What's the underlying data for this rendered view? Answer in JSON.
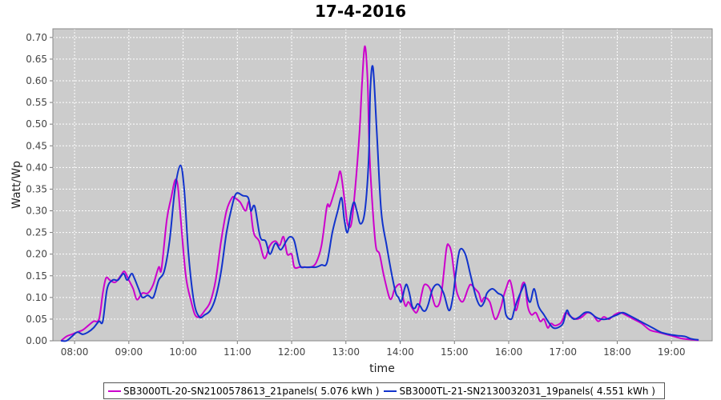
{
  "chart_data": {
    "type": "line",
    "title": "17-4-2016",
    "xlabel": "time",
    "ylabel": "Watt/Wp",
    "xlim": [
      7.6,
      19.75
    ],
    "ylim": [
      0,
      0.72
    ],
    "x_ticks": [
      "08:00",
      "09:00",
      "10:00",
      "11:00",
      "12:00",
      "13:00",
      "14:00",
      "15:00",
      "16:00",
      "17:00",
      "18:00",
      "19:00"
    ],
    "y_ticks": [
      "0.00",
      "0.05",
      "0.10",
      "0.15",
      "0.20",
      "0.25",
      "0.30",
      "0.35",
      "0.40",
      "0.45",
      "0.50",
      "0.55",
      "0.60",
      "0.65",
      "0.70"
    ],
    "grid": true,
    "background": "#cccccc",
    "legend_position": "bottom",
    "series": [
      {
        "name": "SB3000TL-20-SN2100578613_21panels( 5.076 kWh )",
        "color": "#cc00cc",
        "x": [
          7.75,
          7.85,
          7.95,
          8.05,
          8.15,
          8.25,
          8.35,
          8.45,
          8.52,
          8.58,
          8.65,
          8.75,
          8.85,
          8.92,
          9.0,
          9.08,
          9.15,
          9.25,
          9.35,
          9.45,
          9.55,
          9.6,
          9.7,
          9.78,
          9.85,
          9.9,
          9.95,
          10.05,
          10.15,
          10.22,
          10.3,
          10.4,
          10.5,
          10.6,
          10.7,
          10.8,
          10.9,
          10.95,
          11.05,
          11.15,
          11.22,
          11.3,
          11.4,
          11.5,
          11.6,
          11.7,
          11.78,
          11.85,
          11.92,
          12.0,
          12.05,
          12.15,
          12.25,
          12.35,
          12.45,
          12.55,
          12.65,
          12.7,
          12.78,
          12.85,
          12.9,
          12.97,
          13.03,
          13.1,
          13.17,
          13.25,
          13.3,
          13.35,
          13.4,
          13.43,
          13.48,
          13.55,
          13.62,
          13.7,
          13.8,
          13.85,
          13.9,
          14.0,
          14.05,
          14.1,
          14.15,
          14.2,
          14.25,
          14.3,
          14.35,
          14.4,
          14.45,
          14.55,
          14.65,
          14.75,
          14.85,
          14.9,
          14.95,
          15.0,
          15.05,
          15.15,
          15.25,
          15.3,
          15.38,
          15.45,
          15.5,
          15.55,
          15.65,
          15.75,
          15.85,
          15.9,
          15.95,
          16.02,
          16.08,
          16.13,
          16.2,
          16.25,
          16.3,
          16.35,
          16.42,
          16.5,
          16.58,
          16.65,
          16.72,
          16.78,
          16.85,
          16.95,
          17.0,
          17.05,
          17.15,
          17.25,
          17.35,
          17.45,
          17.55,
          17.65,
          17.75,
          17.85,
          17.95,
          18.05,
          18.15,
          18.3,
          18.45,
          18.6,
          18.75,
          18.9,
          19.05,
          19.2,
          19.35,
          19.5
        ],
        "y": [
          0.0,
          0.01,
          0.015,
          0.02,
          0.025,
          0.035,
          0.045,
          0.05,
          0.11,
          0.145,
          0.14,
          0.135,
          0.15,
          0.16,
          0.14,
          0.12,
          0.095,
          0.11,
          0.11,
          0.13,
          0.17,
          0.165,
          0.28,
          0.33,
          0.37,
          0.36,
          0.29,
          0.15,
          0.09,
          0.06,
          0.055,
          0.07,
          0.09,
          0.14,
          0.23,
          0.3,
          0.33,
          0.33,
          0.32,
          0.3,
          0.32,
          0.25,
          0.23,
          0.19,
          0.22,
          0.23,
          0.22,
          0.24,
          0.2,
          0.2,
          0.17,
          0.17,
          0.17,
          0.17,
          0.18,
          0.22,
          0.31,
          0.31,
          0.34,
          0.37,
          0.39,
          0.33,
          0.27,
          0.27,
          0.35,
          0.48,
          0.6,
          0.68,
          0.6,
          0.45,
          0.33,
          0.22,
          0.2,
          0.15,
          0.1,
          0.1,
          0.12,
          0.13,
          0.1,
          0.08,
          0.09,
          0.08,
          0.07,
          0.065,
          0.08,
          0.11,
          0.13,
          0.12,
          0.08,
          0.1,
          0.21,
          0.22,
          0.2,
          0.15,
          0.11,
          0.09,
          0.12,
          0.13,
          0.12,
          0.11,
          0.09,
          0.1,
          0.09,
          0.05,
          0.075,
          0.1,
          0.12,
          0.14,
          0.11,
          0.07,
          0.1,
          0.13,
          0.13,
          0.08,
          0.06,
          0.065,
          0.045,
          0.05,
          0.03,
          0.04,
          0.035,
          0.04,
          0.05,
          0.065,
          0.055,
          0.05,
          0.055,
          0.065,
          0.06,
          0.045,
          0.055,
          0.05,
          0.06,
          0.065,
          0.06,
          0.05,
          0.04,
          0.025,
          0.02,
          0.015,
          0.01,
          0.005,
          0.003,
          0.001
        ],
        "line_width": 2
      },
      {
        "name": "SB3000TL-21-SN2130032031_19panels( 4.551 kWh )",
        "color": "#1133cc",
        "x": [
          7.75,
          7.85,
          7.95,
          8.05,
          8.15,
          8.25,
          8.35,
          8.45,
          8.52,
          8.6,
          8.7,
          8.8,
          8.9,
          8.97,
          9.05,
          9.1,
          9.18,
          9.25,
          9.35,
          9.45,
          9.55,
          9.65,
          9.75,
          9.85,
          9.95,
          10.02,
          10.1,
          10.2,
          10.3,
          10.4,
          10.5,
          10.6,
          10.7,
          10.8,
          10.9,
          10.98,
          11.1,
          11.2,
          11.25,
          11.32,
          11.42,
          11.52,
          11.6,
          11.7,
          11.8,
          11.9,
          11.97,
          12.05,
          12.15,
          12.25,
          12.35,
          12.45,
          12.55,
          12.65,
          12.75,
          12.85,
          12.92,
          12.97,
          13.03,
          13.1,
          13.15,
          13.2,
          13.27,
          13.35,
          13.42,
          13.45,
          13.5,
          13.57,
          13.65,
          13.75,
          13.85,
          13.92,
          13.97,
          14.02,
          14.08,
          14.12,
          14.17,
          14.22,
          14.27,
          14.32,
          14.37,
          14.42,
          14.47,
          14.52,
          14.6,
          14.7,
          14.8,
          14.9,
          14.97,
          15.03,
          15.1,
          15.2,
          15.3,
          15.4,
          15.48,
          15.55,
          15.6,
          15.7,
          15.8,
          15.9,
          15.95,
          16.05,
          16.1,
          16.15,
          16.25,
          16.3,
          16.35,
          16.4,
          16.47,
          16.55,
          16.65,
          16.75,
          16.82,
          16.9,
          17.0,
          17.07,
          17.12,
          17.2,
          17.3,
          17.4,
          17.5,
          17.6,
          17.7,
          17.8,
          17.9,
          18.0,
          18.1,
          18.2,
          18.35,
          18.5,
          18.65,
          18.8,
          18.95,
          19.1,
          19.25,
          19.35,
          19.5
        ],
        "y": [
          0.0,
          0.0,
          0.01,
          0.02,
          0.015,
          0.02,
          0.03,
          0.045,
          0.045,
          0.12,
          0.14,
          0.14,
          0.155,
          0.14,
          0.155,
          0.145,
          0.12,
          0.1,
          0.105,
          0.1,
          0.14,
          0.16,
          0.23,
          0.35,
          0.405,
          0.35,
          0.2,
          0.09,
          0.055,
          0.06,
          0.07,
          0.1,
          0.16,
          0.25,
          0.31,
          0.34,
          0.335,
          0.33,
          0.3,
          0.31,
          0.24,
          0.23,
          0.2,
          0.225,
          0.21,
          0.23,
          0.24,
          0.23,
          0.175,
          0.17,
          0.17,
          0.17,
          0.175,
          0.18,
          0.25,
          0.3,
          0.33,
          0.28,
          0.25,
          0.3,
          0.32,
          0.3,
          0.27,
          0.3,
          0.42,
          0.58,
          0.63,
          0.48,
          0.3,
          0.22,
          0.15,
          0.11,
          0.1,
          0.09,
          0.12,
          0.13,
          0.11,
          0.08,
          0.075,
          0.085,
          0.08,
          0.07,
          0.07,
          0.085,
          0.12,
          0.13,
          0.11,
          0.07,
          0.1,
          0.16,
          0.21,
          0.2,
          0.15,
          0.1,
          0.08,
          0.09,
          0.11,
          0.12,
          0.11,
          0.1,
          0.06,
          0.05,
          0.07,
          0.09,
          0.12,
          0.13,
          0.1,
          0.09,
          0.12,
          0.08,
          0.06,
          0.04,
          0.03,
          0.03,
          0.04,
          0.07,
          0.06,
          0.05,
          0.055,
          0.065,
          0.065,
          0.055,
          0.05,
          0.05,
          0.055,
          0.06,
          0.065,
          0.06,
          0.05,
          0.04,
          0.03,
          0.02,
          0.015,
          0.012,
          0.01,
          0.005,
          0.002
        ],
        "line_width": 2
      }
    ]
  }
}
